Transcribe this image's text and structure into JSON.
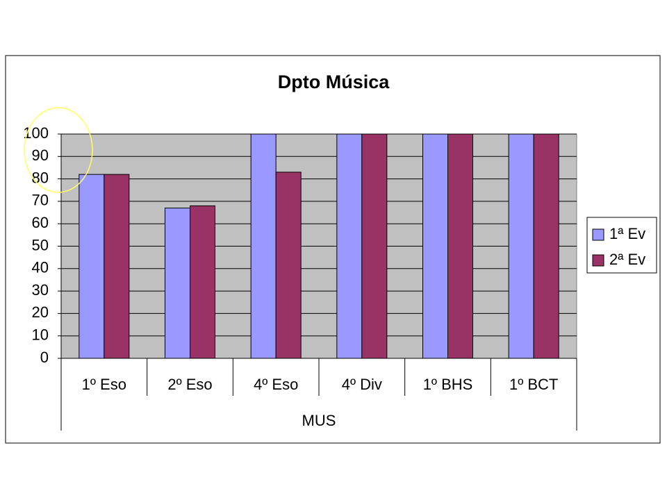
{
  "chart_data": {
    "type": "bar",
    "title": "Dpto Música",
    "categories": [
      "1º Eso",
      "2º Eso",
      "4º Eso",
      "4º Div",
      "1º BHS",
      "1º BCT"
    ],
    "group_label": "MUS",
    "series": [
      {
        "name": "1ª Ev",
        "color": "#9999ff",
        "values": [
          82,
          67,
          100,
          100,
          100,
          100
        ]
      },
      {
        "name": "2ª Ev",
        "color": "#993366",
        "values": [
          82,
          68,
          83,
          100,
          100,
          100
        ]
      }
    ],
    "ylim": [
      0,
      100
    ],
    "yticks": [
      0,
      10,
      20,
      30,
      40,
      50,
      60,
      70,
      80,
      90,
      100
    ],
    "grid": true,
    "legend": "right",
    "plot_background": "#c0c0c0"
  }
}
